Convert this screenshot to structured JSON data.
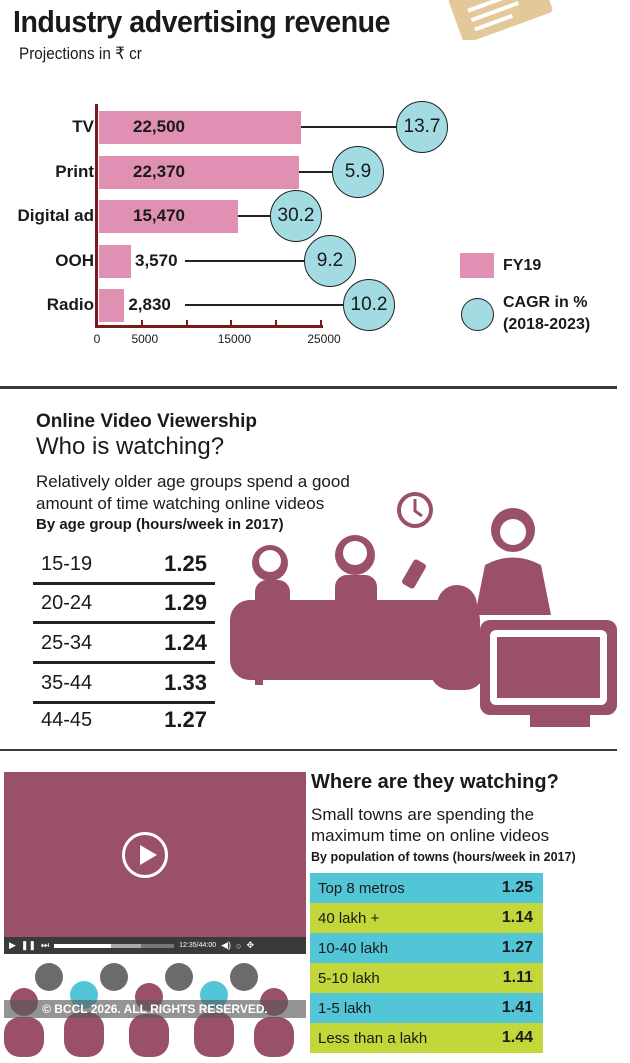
{
  "chart_data": {
    "type": "bar",
    "title": "Industry advertising revenue",
    "subtitle": "Projections in ₹ cr",
    "categories": [
      "TV",
      "Print",
      "Digital ad",
      "OOH",
      "Radio"
    ],
    "series": [
      {
        "name": "FY19",
        "values": [
          22500,
          22370,
          15470,
          3570,
          2830
        ],
        "labels": [
          "22,500",
          "22,370",
          "15,470",
          "3,570",
          "2,830"
        ],
        "color": "#e090b2"
      },
      {
        "name": "CAGR in % (2018-2023)",
        "values": [
          13.7,
          5.9,
          30.2,
          9.2,
          10.2
        ],
        "labels": [
          "13.7",
          "5.9",
          "30.2",
          "9.2",
          "10.2"
        ],
        "color": "#a3dbe3"
      }
    ],
    "xlim": [
      0,
      25000
    ],
    "tick_labels": [
      "0",
      "5000",
      "15000",
      "25000"
    ],
    "legend": {
      "fy19": "FY19",
      "cagr_line1": "CAGR in %",
      "cagr_line2": "(2018-2023)",
      "position": "right"
    }
  },
  "viewership": {
    "kicker": "Online Video Viewership",
    "heading": "Who is watching?",
    "desc1": "Relatively older age groups spend a good",
    "desc2": "amount of time watching online videos",
    "note": "By age group (hours/week in 2017)",
    "rows": [
      {
        "label": "15-19",
        "value": "1.25"
      },
      {
        "label": "20-24",
        "value": "1.29"
      },
      {
        "label": "25-34",
        "value": "1.24"
      },
      {
        "label": "35-44",
        "value": "1.33"
      },
      {
        "label": "44-45",
        "value": "1.27"
      }
    ]
  },
  "where": {
    "heading": "Where are they watching?",
    "desc1": "Small towns are spending the",
    "desc2": "maximum time on online videos",
    "note": "By population of towns (hours/week in 2017)",
    "rows": [
      {
        "label": "Top 8 metros",
        "value": "1.25"
      },
      {
        "label": "40 lakh +",
        "value": "1.14"
      },
      {
        "label": "10-40 lakh",
        "value": "1.27"
      },
      {
        "label": "5-10 lakh",
        "value": "1.11"
      },
      {
        "label": "1-5 lakh",
        "value": "1.41"
      },
      {
        "label": "Less than a lakh",
        "value": "1.44"
      }
    ],
    "colors": [
      "#52c5d6",
      "#c3d63a"
    ]
  },
  "player": {
    "time": "12:35/44:00",
    "progress": 0.47,
    "buffered": 0.72
  },
  "watermark": "© BCCL 2026. ALL RIGHTS RESERVED.",
  "colors": {
    "illustration": "#9a4f6a",
    "axis": "#7a1a1a"
  }
}
